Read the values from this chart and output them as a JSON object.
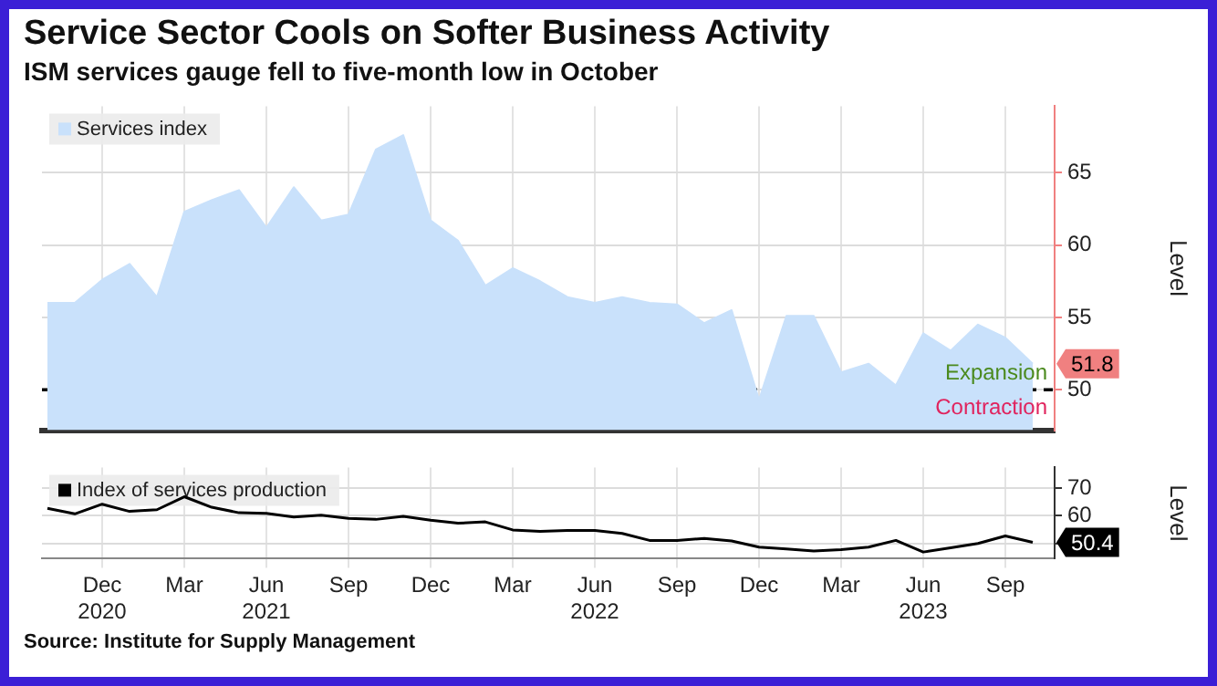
{
  "chart_data": [
    {
      "type": "area",
      "title": "Service Sector Cools on Softer Business Activity",
      "subtitle": "ISM services gauge fell to five-month low in October",
      "ylabel": "Level",
      "legend": "top left",
      "grid": true,
      "tick_labels": "y",
      "x": [
        "2020-10",
        "2020-11",
        "2020-12",
        "2021-01",
        "2021-02",
        "2021-03",
        "2021-04",
        "2021-05",
        "2021-06",
        "2021-07",
        "2021-08",
        "2021-09",
        "2021-10",
        "2021-11",
        "2021-12",
        "2022-01",
        "2022-02",
        "2022-03",
        "2022-04",
        "2022-05",
        "2022-06",
        "2022-07",
        "2022-08",
        "2022-09",
        "2022-10",
        "2022-11",
        "2022-12",
        "2023-01",
        "2023-02",
        "2023-03",
        "2023-04",
        "2023-05",
        "2023-06",
        "2023-07",
        "2023-08",
        "2023-09",
        "2023-10"
      ],
      "series": [
        {
          "name": "Services index",
          "color": "#c9e1fb",
          "values": [
            56.0,
            56.0,
            57.6,
            58.7,
            56.4,
            62.3,
            63.1,
            63.8,
            61.2,
            64.0,
            61.7,
            62.1,
            66.6,
            67.6,
            61.7,
            60.3,
            57.2,
            58.4,
            57.5,
            56.4,
            56.0,
            56.4,
            56.0,
            55.9,
            54.6,
            55.5,
            49.3,
            55.1,
            55.1,
            51.2,
            51.8,
            50.3,
            53.9,
            52.7,
            54.5,
            53.6,
            51.8
          ]
        }
      ],
      "xlim": [
        "2020-09-25",
        "2023-10-25"
      ],
      "xticks": [
        {
          "value": "2020-12",
          "label": null
        },
        {
          "value": "2021-03",
          "label": null
        },
        {
          "value": "2021-06",
          "label": null
        },
        {
          "value": "2021-09",
          "label": null
        },
        {
          "value": "2021-12",
          "label": null
        },
        {
          "value": "2022-03",
          "label": null
        },
        {
          "value": "2022-06",
          "label": null
        },
        {
          "value": "2022-09",
          "label": null
        },
        {
          "value": "2022-12",
          "label": null
        },
        {
          "value": "2023-03",
          "label": null
        },
        {
          "value": "2023-06",
          "label": null
        },
        {
          "value": "2023-09",
          "label": null
        }
      ],
      "ylim": [
        47.2,
        69.6
      ],
      "yticks": [
        50,
        55,
        60,
        65
      ],
      "ref_lines": [
        {
          "axis": "y",
          "value": 50,
          "color": "#000000",
          "line_style": "dashed"
        }
      ],
      "annotations": [
        "Expansion",
        "Contraction",
        {
          "text": "51.8",
          "x": "2023-10",
          "y": 51.8
        }
      ]
    },
    {
      "type": "line",
      "ylabel": "Level",
      "legend": "top left",
      "grid": true,
      "x": [
        "2020-10",
        "2020-11",
        "2020-12",
        "2021-01",
        "2021-02",
        "2021-03",
        "2021-04",
        "2021-05",
        "2021-06",
        "2021-07",
        "2021-08",
        "2021-09",
        "2021-10",
        "2021-11",
        "2021-12",
        "2022-01",
        "2022-02",
        "2022-03",
        "2022-04",
        "2022-05",
        "2022-06",
        "2022-07",
        "2022-08",
        "2022-09",
        "2022-10",
        "2022-11",
        "2022-12",
        "2023-01",
        "2023-02",
        "2023-03",
        "2023-04",
        "2023-05",
        "2023-06",
        "2023-07",
        "2023-08",
        "2023-09",
        "2023-10"
      ],
      "series": [
        {
          "name": "Index of services production",
          "color": "#000000",
          "values": [
            62.7,
            60.7,
            64.2,
            61.6,
            62.2,
            66.9,
            63.1,
            61.1,
            60.9,
            59.6,
            60.2,
            59.1,
            58.7,
            59.8,
            58.4,
            57.3,
            57.8,
            54.9,
            54.4,
            54.7,
            54.7,
            53.6,
            51.1,
            51.1,
            51.8,
            50.9,
            48.7,
            48.0,
            47.3,
            47.8,
            48.7,
            51.1,
            46.9,
            48.4,
            50.0,
            52.7,
            50.4
          ]
        }
      ],
      "xlim": [
        "2020-09-25",
        "2023-10-25"
      ],
      "xticks": [
        {
          "value": "2020-12",
          "label": "Dec\n2020"
        },
        {
          "value": "2021-03",
          "label": "Mar"
        },
        {
          "value": "2021-06",
          "label": "Jun\n2021"
        },
        {
          "value": "2021-09",
          "label": "Sep"
        },
        {
          "value": "2021-12",
          "label": "Dec"
        },
        {
          "value": "2022-03",
          "label": "Mar"
        },
        {
          "value": "2022-06",
          "label": "Jun\n2022"
        },
        {
          "value": "2022-09",
          "label": "Sep"
        },
        {
          "value": "2022-12",
          "label": "Dec"
        },
        {
          "value": "2023-03",
          "label": "Mar"
        },
        {
          "value": "2023-06",
          "label": "Jun\n2023"
        },
        {
          "value": "2023-09",
          "label": "Sep"
        }
      ],
      "ylim": [
        44.5,
        77.5
      ],
      "yticks": [
        {
          "value": 50,
          "label": null
        },
        60,
        70
      ],
      "annotations": [
        {
          "text": "50.4",
          "x": "2023-10",
          "y": 50.4
        },
        "Source: Institute for Supply Management"
      ]
    }
  ]
}
